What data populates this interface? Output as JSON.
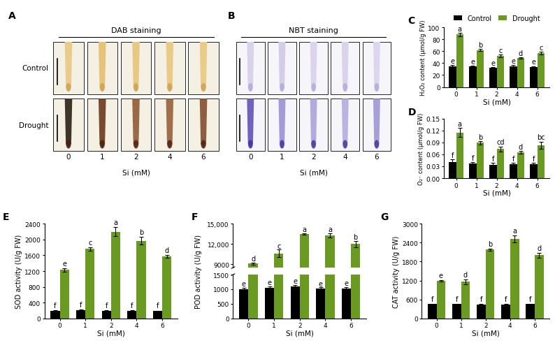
{
  "chart_data": [
    {
      "panel": "A",
      "type": "image",
      "title": "DAB staining",
      "rows": [
        "Control",
        "Drought"
      ],
      "categories": [
        "0",
        "1",
        "2",
        "4",
        "6"
      ],
      "x_label": "Si (mM)"
    },
    {
      "panel": "B",
      "type": "image",
      "title": "NBT staining",
      "categories": [
        "0",
        "1",
        "2",
        "4",
        "6"
      ],
      "x_label": "Si (mM)"
    },
    {
      "panel": "C",
      "type": "bar",
      "y_label": "H₂O₂ content (μmol/g FW)",
      "x_label": "Si (mM)",
      "categories": [
        "0",
        "1",
        "2",
        "4",
        "6"
      ],
      "legend": "upper center",
      "ylim": [
        0,
        100
      ],
      "yticks": [
        0,
        20,
        40,
        60,
        80,
        100
      ],
      "series": [
        {
          "name": "Control",
          "color": "#000000",
          "values": [
            35,
            34,
            32,
            35,
            33
          ],
          "errors": [
            2,
            1.5,
            1.5,
            1.5,
            2
          ],
          "letters": [
            "e",
            "e",
            "e",
            "e",
            "e"
          ]
        },
        {
          "name": "Drought",
          "color": "#6a9a22",
          "values": [
            88,
            62,
            52,
            49,
            57
          ],
          "errors": [
            3,
            2,
            2,
            1,
            2
          ],
          "letters": [
            "a",
            "b",
            "c",
            "d",
            "c"
          ]
        }
      ]
    },
    {
      "panel": "D",
      "type": "bar",
      "y_label": "O₂⁻ content (μmol/g FW)",
      "x_label": "Si (mM)",
      "categories": [
        "0",
        "1",
        "2",
        "4",
        "6"
      ],
      "ylim": [
        0,
        0.15
      ],
      "yticks": [
        {
          "value": 0,
          "label": "0.00"
        },
        {
          "value": 0.03,
          "label": "0.03"
        },
        {
          "value": 0.06,
          "label": "0.06"
        },
        {
          "value": 0.09,
          "label": "0.09"
        },
        {
          "value": 0.12,
          "label": "0.12"
        },
        {
          "value": 0.15,
          "label": "0.15"
        }
      ],
      "series": [
        {
          "name": "Control",
          "color": "#000000",
          "values": [
            0.04,
            0.037,
            0.034,
            0.035,
            0.036
          ],
          "errors": [
            0.007,
            0.003,
            0.004,
            0.003,
            0.003
          ],
          "letters": [
            "f",
            "f",
            "f",
            "f",
            "f"
          ]
        },
        {
          "name": "Drought",
          "color": "#6a9a22",
          "values": [
            0.115,
            0.089,
            0.073,
            0.065,
            0.083
          ],
          "errors": [
            0.011,
            0.004,
            0.007,
            0.003,
            0.009
          ],
          "letters": [
            "a",
            "b",
            "cd",
            "d",
            "bc"
          ]
        }
      ]
    },
    {
      "panel": "E",
      "type": "bar",
      "y_label": "SOD activity (U/g FW)",
      "x_label": "Si (mM)",
      "categories": [
        "0",
        "1",
        "2",
        "4",
        "6"
      ],
      "ylim": [
        0,
        2400
      ],
      "yticks": [
        0,
        400,
        800,
        1200,
        1600,
        2000,
        2400
      ],
      "series": [
        {
          "name": "Control",
          "color": "#000000",
          "values": [
            200,
            205,
            200,
            195,
            185
          ],
          "errors": [
            15,
            15,
            15,
            15,
            15
          ],
          "letters": [
            "f",
            "f",
            "f",
            "f",
            "f"
          ]
        },
        {
          "name": "Drought",
          "color": "#6a9a22",
          "values": [
            1230,
            1760,
            2200,
            1970,
            1570
          ],
          "errors": [
            40,
            50,
            110,
            90,
            30
          ],
          "letters": [
            "e",
            "c",
            "a",
            "b",
            "d"
          ]
        }
      ]
    },
    {
      "panel": "F",
      "type": "bar",
      "y_label": "POD activity (U/g FW)",
      "x_label": "Si (mM)",
      "categories": [
        "0",
        "1",
        "2",
        "4",
        "6"
      ],
      "axis_segments": [
        {
          "ylim": [
            8500,
            15000
          ],
          "yticks": [
            9000,
            {
              "value": 12000,
              "label": "12,000"
            },
            {
              "value": 15000,
              "label": "15,000"
            }
          ]
        },
        {
          "ylim": [
            0,
            1500
          ],
          "yticks": [
            0,
            500,
            1000,
            1500
          ]
        }
      ],
      "series": [
        {
          "name": "Control",
          "color": "#000000",
          "values": [
            1000,
            1050,
            1100,
            1020,
            1030
          ],
          "errors": [
            40,
            40,
            40,
            40,
            40
          ],
          "letters": [
            "e",
            "e",
            "e",
            "e",
            "e"
          ]
        },
        {
          "name": "Drought",
          "color": "#6a9a22",
          "values": [
            9100,
            10600,
            13500,
            13300,
            12000
          ],
          "errors": [
            150,
            550,
            100,
            300,
            450
          ],
          "letters": [
            "d",
            "c",
            "a",
            "a",
            "b"
          ]
        }
      ]
    },
    {
      "panel": "G",
      "type": "bar",
      "y_label": "CAT activity (U/g FW)",
      "x_label": "Si (mM)",
      "categories": [
        "0",
        "1",
        "2",
        "4",
        "6"
      ],
      "ylim": [
        0,
        3000
      ],
      "yticks": [
        0,
        600,
        1200,
        1800,
        2400,
        3000
      ],
      "series": [
        {
          "name": "Control",
          "color": "#000000",
          "values": [
            450,
            450,
            440,
            430,
            450
          ],
          "errors": [
            20,
            20,
            20,
            20,
            20
          ],
          "letters": [
            "f",
            "f",
            "f",
            "f",
            "f"
          ]
        },
        {
          "name": "Drought",
          "color": "#6a9a22",
          "values": [
            1190,
            1160,
            2180,
            2520,
            2000
          ],
          "errors": [
            30,
            80,
            30,
            120,
            70
          ],
          "letters": [
            "e",
            "d",
            "b",
            "a",
            "d"
          ]
        }
      ]
    }
  ]
}
